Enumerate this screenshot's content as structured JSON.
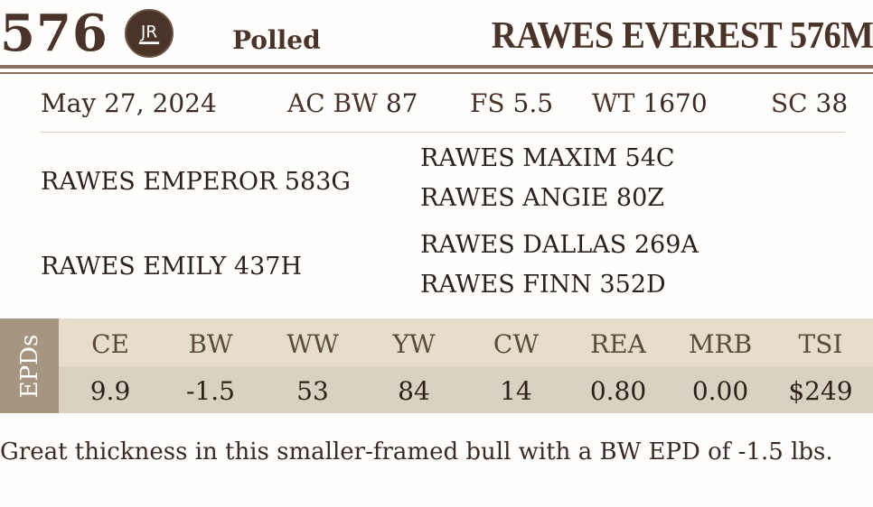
{
  "lot_number": "576",
  "logo_text": "JR",
  "horn_status": "Polled",
  "animal_name": "RAWES EVEREST 576M",
  "birth_date": "May 27, 2024",
  "stats": [
    {
      "label": "AC BW",
      "value": "87"
    },
    {
      "label": "FS",
      "value": "5.5"
    },
    {
      "label": "WT",
      "value": "1670"
    },
    {
      "label": "SC",
      "value": "38"
    }
  ],
  "pedigree": {
    "sire": "RAWES EMPEROR 583G",
    "sire_sire": "RAWES MAXIM 54C",
    "sire_dam": "RAWES ANGIE 80Z",
    "dam": "RAWES EMILY 437H",
    "dam_sire": "RAWES DALLAS 269A",
    "dam_dam": "RAWES FINN 352D"
  },
  "epds": {
    "label": "EPDs",
    "columns": [
      {
        "name": "CE",
        "value": "9.9"
      },
      {
        "name": "BW",
        "value": "-1.5"
      },
      {
        "name": "WW",
        "value": "53"
      },
      {
        "name": "YW",
        "value": "84"
      },
      {
        "name": "CW",
        "value": "14"
      },
      {
        "name": "REA",
        "value": "0.80"
      },
      {
        "name": "MRB",
        "value": "0.00"
      },
      {
        "name": "TSI",
        "value": "$249"
      }
    ]
  },
  "note": "Great thickness in this smaller-framed bull with a BW EPD of -1.5 lbs.",
  "colors": {
    "brand_brown": "#4a3328",
    "epd_side": "#a69581",
    "epd_header": "#e7ddcc",
    "epd_values": "#d9d1c1"
  }
}
